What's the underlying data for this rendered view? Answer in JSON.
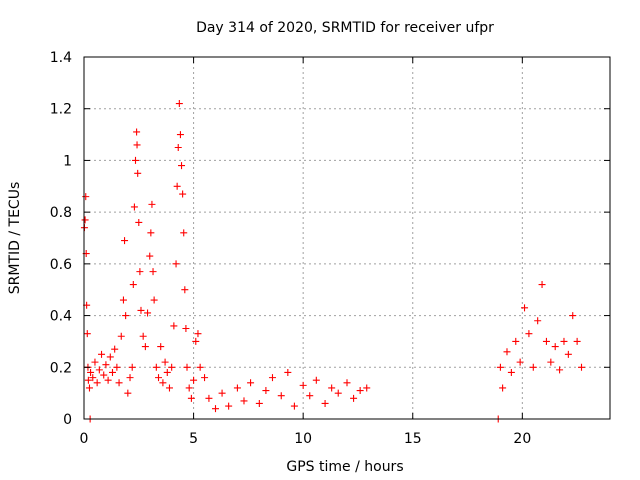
{
  "chart_data": {
    "type": "scatter",
    "title": "Day 314 of 2020, SRMTID for receiver ufpr",
    "xlabel": "GPS time / hours",
    "ylabel": "SRMTID / TECUs",
    "xlim": [
      0,
      24
    ],
    "ylim": [
      0,
      1.4
    ],
    "x_ticks": [
      0,
      5,
      10,
      15,
      20
    ],
    "x_tick_labels": [
      "0",
      "5",
      "10",
      "15",
      "20"
    ],
    "y_ticks": [
      0,
      0.2,
      0.4,
      0.6,
      0.8,
      1.0,
      1.2,
      1.4
    ],
    "y_tick_labels": [
      "0",
      "0.2",
      "0.4",
      "0.6",
      "0.8",
      "1",
      "1.2",
      "1.4"
    ],
    "grid": true,
    "marker": "+",
    "color": "#ff0000",
    "series": [
      {
        "name": "SRMTID",
        "points": [
          [
            0.02,
            0.74
          ],
          [
            0.05,
            0.77
          ],
          [
            0.08,
            0.86
          ],
          [
            0.1,
            0.64
          ],
          [
            0.12,
            0.44
          ],
          [
            0.15,
            0.33
          ],
          [
            0.18,
            0.2
          ],
          [
            0.2,
            0.15
          ],
          [
            0.25,
            0.12
          ],
          [
            0.28,
            0.0
          ],
          [
            0.3,
            0.18
          ],
          [
            0.4,
            0.16
          ],
          [
            0.5,
            0.22
          ],
          [
            0.6,
            0.14
          ],
          [
            0.7,
            0.19
          ],
          [
            0.8,
            0.25
          ],
          [
            0.9,
            0.17
          ],
          [
            1.0,
            0.21
          ],
          [
            1.1,
            0.15
          ],
          [
            1.2,
            0.24
          ],
          [
            1.3,
            0.18
          ],
          [
            1.4,
            0.27
          ],
          [
            1.5,
            0.2
          ],
          [
            1.6,
            0.14
          ],
          [
            1.7,
            0.32
          ],
          [
            1.8,
            0.46
          ],
          [
            1.85,
            0.69
          ],
          [
            1.9,
            0.4
          ],
          [
            2.0,
            0.1
          ],
          [
            2.1,
            0.16
          ],
          [
            2.2,
            0.2
          ],
          [
            2.25,
            0.52
          ],
          [
            2.3,
            0.82
          ],
          [
            2.35,
            1.0
          ],
          [
            2.4,
            1.11
          ],
          [
            2.42,
            1.06
          ],
          [
            2.45,
            0.95
          ],
          [
            2.5,
            0.76
          ],
          [
            2.55,
            0.57
          ],
          [
            2.6,
            0.42
          ],
          [
            2.7,
            0.32
          ],
          [
            2.8,
            0.28
          ],
          [
            2.9,
            0.41
          ],
          [
            3.0,
            0.63
          ],
          [
            3.05,
            0.72
          ],
          [
            3.1,
            0.83
          ],
          [
            3.15,
            0.57
          ],
          [
            3.2,
            0.46
          ],
          [
            3.3,
            0.2
          ],
          [
            3.4,
            0.16
          ],
          [
            3.5,
            0.28
          ],
          [
            3.6,
            0.14
          ],
          [
            3.7,
            0.22
          ],
          [
            3.8,
            0.18
          ],
          [
            3.9,
            0.12
          ],
          [
            4.0,
            0.2
          ],
          [
            4.1,
            0.36
          ],
          [
            4.2,
            0.6
          ],
          [
            4.25,
            0.9
          ],
          [
            4.3,
            1.05
          ],
          [
            4.35,
            1.22
          ],
          [
            4.4,
            1.1
          ],
          [
            4.45,
            0.98
          ],
          [
            4.5,
            0.87
          ],
          [
            4.55,
            0.72
          ],
          [
            4.6,
            0.5
          ],
          [
            4.65,
            0.35
          ],
          [
            4.7,
            0.2
          ],
          [
            4.8,
            0.12
          ],
          [
            4.9,
            0.08
          ],
          [
            5.0,
            0.15
          ],
          [
            5.1,
            0.3
          ],
          [
            5.2,
            0.33
          ],
          [
            5.3,
            0.2
          ],
          [
            5.5,
            0.16
          ],
          [
            5.7,
            0.08
          ],
          [
            6.0,
            0.04
          ],
          [
            6.3,
            0.1
          ],
          [
            6.6,
            0.05
          ],
          [
            7.0,
            0.12
          ],
          [
            7.3,
            0.07
          ],
          [
            7.6,
            0.14
          ],
          [
            8.0,
            0.06
          ],
          [
            8.3,
            0.11
          ],
          [
            8.6,
            0.16
          ],
          [
            9.0,
            0.09
          ],
          [
            9.3,
            0.18
          ],
          [
            9.6,
            0.05
          ],
          [
            10.0,
            0.13
          ],
          [
            10.3,
            0.09
          ],
          [
            10.6,
            0.15
          ],
          [
            11.0,
            0.06
          ],
          [
            11.3,
            0.12
          ],
          [
            11.6,
            0.1
          ],
          [
            12.0,
            0.14
          ],
          [
            12.3,
            0.08
          ],
          [
            12.6,
            0.11
          ],
          [
            12.9,
            0.12
          ],
          [
            18.9,
            0.0
          ],
          [
            19.0,
            0.2
          ],
          [
            19.1,
            0.12
          ],
          [
            19.3,
            0.26
          ],
          [
            19.5,
            0.18
          ],
          [
            19.7,
            0.3
          ],
          [
            19.9,
            0.22
          ],
          [
            20.1,
            0.43
          ],
          [
            20.3,
            0.33
          ],
          [
            20.5,
            0.2
          ],
          [
            20.7,
            0.38
          ],
          [
            20.9,
            0.52
          ],
          [
            21.1,
            0.3
          ],
          [
            21.3,
            0.22
          ],
          [
            21.5,
            0.28
          ],
          [
            21.7,
            0.19
          ],
          [
            21.9,
            0.3
          ],
          [
            22.1,
            0.25
          ],
          [
            22.3,
            0.4
          ],
          [
            22.5,
            0.3
          ],
          [
            22.7,
            0.2
          ]
        ]
      }
    ]
  }
}
